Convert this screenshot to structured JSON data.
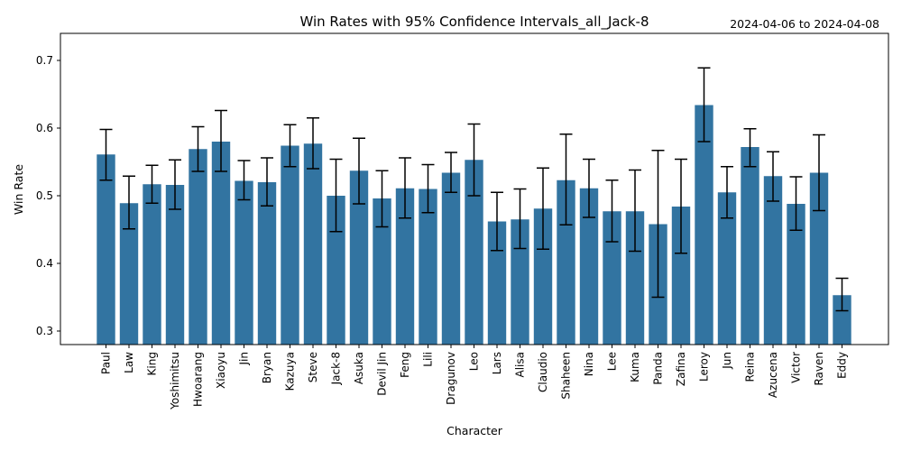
{
  "date_range": "2024-04-06 to 2024-04-08",
  "chart_data": {
    "type": "bar",
    "title": "Win Rates with 95% Confidence Intervals_all_Jack-8",
    "xlabel": "Character",
    "ylabel": "Win Rate",
    "ylim": [
      0.28,
      0.74
    ],
    "yticks": [
      0.3,
      0.4,
      0.5,
      0.6,
      0.7
    ],
    "ytick_labels": [
      "0.3",
      "0.4",
      "0.5",
      "0.6",
      "0.7"
    ],
    "bar_color": "#3274a1",
    "errorbar_color": "#000000",
    "grid": false,
    "legend": "none",
    "categories": [
      "Paul",
      "Law",
      "King",
      "Yoshimitsu",
      "Hwoarang",
      "Xiaoyu",
      "Jin",
      "Bryan",
      "Kazuya",
      "Steve",
      "Jack-8",
      "Asuka",
      "Devil Jin",
      "Feng",
      "Lili",
      "Dragunov",
      "Leo",
      "Lars",
      "Alisa",
      "Claudio",
      "Shaheen",
      "Nina",
      "Lee",
      "Kuma",
      "Panda",
      "Zafina",
      "Leroy",
      "Jun",
      "Reina",
      "Azucena",
      "Victor",
      "Raven",
      "Eddy"
    ],
    "values": [
      0.561,
      0.489,
      0.517,
      0.516,
      0.569,
      0.58,
      0.522,
      0.52,
      0.574,
      0.577,
      0.5,
      0.537,
      0.496,
      0.511,
      0.51,
      0.534,
      0.553,
      0.462,
      0.465,
      0.481,
      0.523,
      0.511,
      0.477,
      0.477,
      0.458,
      0.484,
      0.634,
      0.505,
      0.572,
      0.529,
      0.488,
      0.534,
      0.353
    ],
    "ci_lower": [
      0.523,
      0.451,
      0.489,
      0.48,
      0.536,
      0.536,
      0.494,
      0.485,
      0.543,
      0.54,
      0.447,
      0.488,
      0.454,
      0.467,
      0.475,
      0.505,
      0.5,
      0.419,
      0.422,
      0.421,
      0.457,
      0.468,
      0.432,
      0.418,
      0.35,
      0.415,
      0.58,
      0.467,
      0.543,
      0.492,
      0.449,
      0.478,
      0.33
    ],
    "ci_upper": [
      0.598,
      0.529,
      0.545,
      0.553,
      0.602,
      0.626,
      0.552,
      0.556,
      0.605,
      0.615,
      0.554,
      0.585,
      0.537,
      0.556,
      0.546,
      0.564,
      0.606,
      0.505,
      0.51,
      0.541,
      0.591,
      0.554,
      0.523,
      0.538,
      0.567,
      0.554,
      0.689,
      0.543,
      0.599,
      0.565,
      0.528,
      0.59,
      0.378
    ]
  }
}
